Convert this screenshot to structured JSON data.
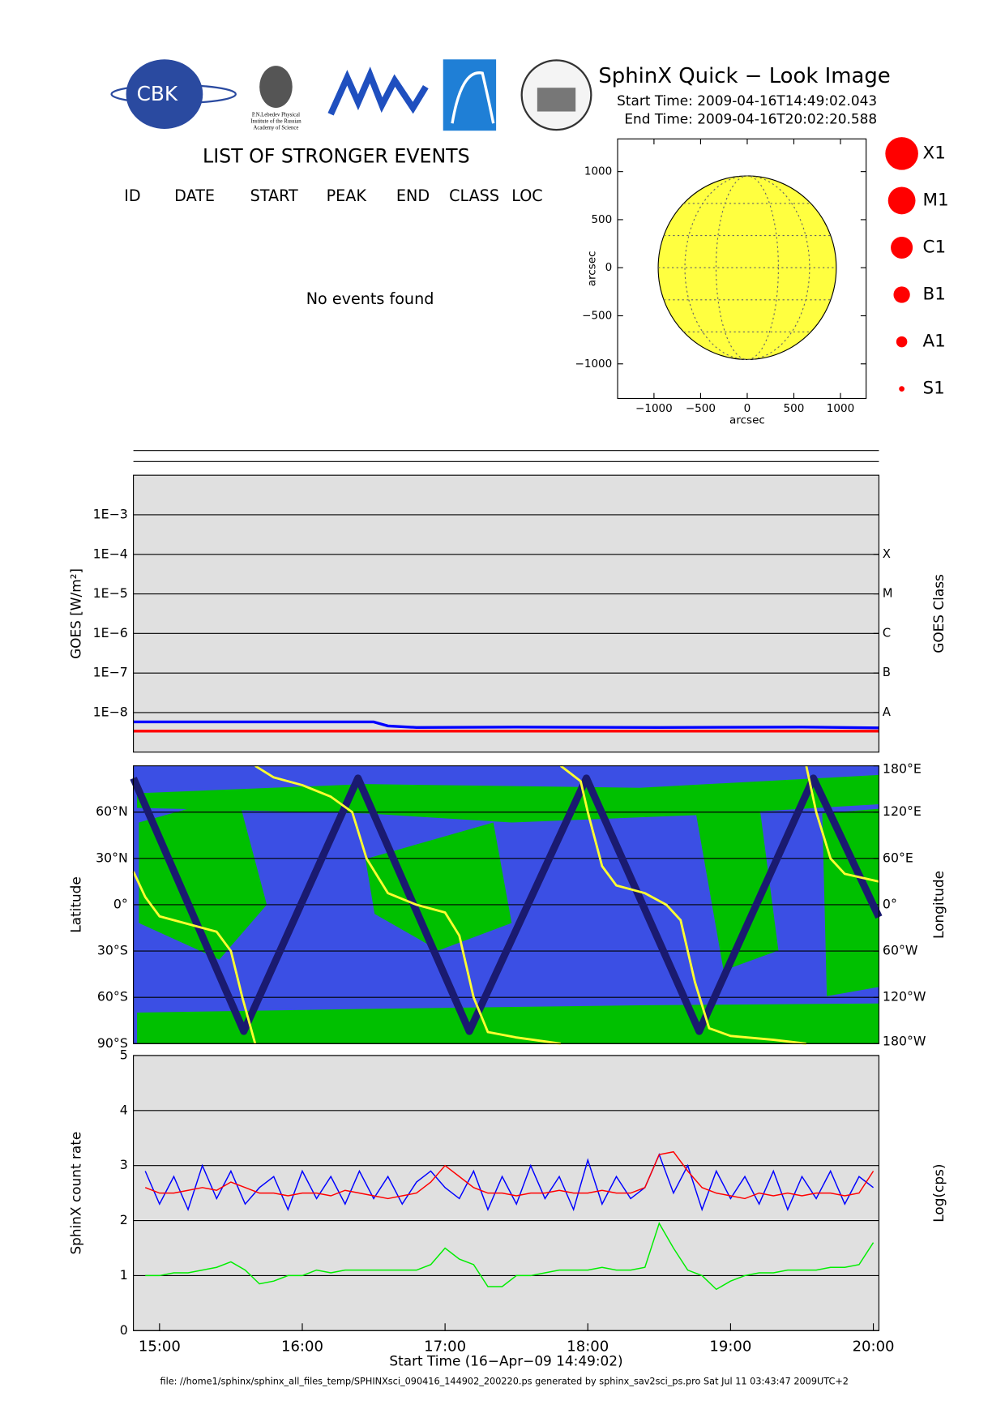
{
  "header": {
    "title": "SphinX Quick − Look Image",
    "start_time": "Start Time: 2009-04-16T14:49:02.043",
    "end_time": "End Time: 2009-04-16T20:02:20.588",
    "logo_cbk": "CBK",
    "logo_lebedev": [
      "P.N.Lebedev Physical",
      "Institute of the Russian",
      "Academy of Science"
    ]
  },
  "events": {
    "title": "LIST OF STRONGER EVENTS",
    "columns": [
      "ID",
      "DATE",
      "START",
      "PEAK",
      "END",
      "CLASS",
      "LOC"
    ],
    "message": "No events found"
  },
  "flare_classes": [
    "X1",
    "M1",
    "C1",
    "B1",
    "A1",
    "S1"
  ],
  "chart_data": [
    {
      "type": "disk",
      "xlabel": "arcsec",
      "ylabel": "arcsec",
      "xlim": [
        -1390,
        1275
      ],
      "ylim": [
        -1360,
        1340
      ],
      "xticks": [
        {
          "value": -1000,
          "label": "−1000"
        },
        {
          "value": -500,
          "label": "−500"
        },
        0,
        500,
        1000
      ],
      "yticks": [
        {
          "value": -1000,
          "label": "−1000"
        },
        {
          "value": -500,
          "label": "−500"
        },
        0,
        500,
        1000
      ],
      "radius": 955,
      "color": "#ffff40"
    },
    {
      "type": "line",
      "ylabel": "GOES [W/m²]",
      "y2label": "GOES Class",
      "log_y": true,
      "grid": true,
      "xlim": [
        14.817,
        20.039
      ],
      "ylim": [
        1e-09,
        0.01
      ],
      "yticks": [
        {
          "value": 0.001,
          "label": "1E−3"
        },
        {
          "value": 0.0001,
          "label": "1E−4"
        },
        {
          "value": 1e-05,
          "label": "1E−5"
        },
        {
          "value": 1e-06,
          "label": "1E−6"
        },
        {
          "value": 1e-07,
          "label": "1E−7"
        },
        {
          "value": 1e-08,
          "label": "1E−8"
        }
      ],
      "y2lim": [
        1e-09,
        0.01
      ],
      "y2ticks": [
        {
          "value": 0.0001,
          "label": "X"
        },
        {
          "value": 1e-05,
          "label": "M"
        },
        {
          "value": 1e-06,
          "label": "C"
        },
        {
          "value": 1e-07,
          "label": "B"
        },
        {
          "value": 1e-08,
          "label": "A"
        }
      ],
      "x": [
        14.817,
        15.5,
        16.5,
        16.6,
        16.8,
        17.5,
        18.5,
        19.5,
        20.039
      ],
      "series": [
        {
          "color": "#ff0000",
          "values": [
            3.4e-09,
            3.4e-09,
            3.4e-09,
            3.4e-09,
            3.4e-09,
            3.4e-09,
            3.4e-09,
            3.4e-09,
            3.4e-09
          ]
        },
        {
          "color": "#0000ff",
          "values": [
            5.8e-09,
            5.8e-09,
            5.8e-09,
            4.6e-09,
            4.2e-09,
            4.3e-09,
            4.2e-09,
            4.3e-09,
            4.1e-09
          ]
        }
      ]
    },
    {
      "type": "track",
      "ylabel": "Latitude",
      "y2label": "Longitude",
      "xlim": [
        14.817,
        20.039
      ],
      "ylim": [
        -90,
        90
      ],
      "yticks": [
        {
          "value": 60,
          "label": "60°N"
        },
        {
          "value": 30,
          "label": "30°N"
        },
        {
          "value": 0,
          "label": "0°"
        },
        {
          "value": -30,
          "label": "30°S"
        },
        {
          "value": -60,
          "label": "60°S"
        },
        {
          "value": -90,
          "label": "90°S"
        }
      ],
      "y2lim": [
        -180,
        180
      ],
      "y2ticks": [
        {
          "value": 180,
          "label": "180°E"
        },
        {
          "value": 120,
          "label": "120°E"
        },
        {
          "value": 60,
          "label": "60°E"
        },
        {
          "value": 0,
          "label": "0°"
        },
        {
          "value": -60,
          "label": "60°W"
        },
        {
          "value": -120,
          "label": "120°W"
        },
        {
          "value": -180,
          "label": "180°W"
        }
      ],
      "series": [
        {
          "color": "#1a1a70",
          "x": [
            14.817,
            15.59,
            16.39,
            17.17,
            17.99,
            18.78,
            19.58,
            20.039
          ],
          "values": [
            82,
            -82,
            82,
            -82,
            82,
            -82,
            82,
            -8
          ]
        },
        {
          "color": "#ffff30",
          "axis": "y2",
          "x": [
            14.817,
            14.9,
            15.0,
            15.2,
            15.4,
            15.5,
            15.58,
            15.67,
            15.67,
            15.67,
            15.8,
            16.0,
            16.2,
            16.35,
            16.45,
            16.6,
            16.8,
            17.0,
            17.1,
            17.2,
            17.3,
            17.5,
            17.81,
            17.81,
            17.81,
            17.95,
            18.0,
            18.1,
            18.2,
            18.4,
            18.55,
            18.65,
            18.75,
            18.85,
            19.0,
            19.3,
            19.53,
            19.53,
            19.53,
            19.6,
            19.7,
            19.8,
            20.039
          ],
          "values": [
            43,
            10,
            -15,
            -25,
            -35,
            -60,
            -120,
            -180,
            null,
            180,
            165,
            155,
            140,
            120,
            60,
            15,
            0,
            -10,
            -40,
            -120,
            -165,
            -172,
            -180,
            null,
            180,
            160,
            120,
            50,
            25,
            15,
            0,
            -20,
            -100,
            -160,
            -170,
            -175,
            -180,
            null,
            180,
            120,
            60,
            40,
            30
          ]
        }
      ]
    },
    {
      "type": "line",
      "ylabel": "SphinX count rate",
      "y2label": "Log(cps)",
      "xlabel": "Start Time (16−Apr−09 14:49:02)",
      "grid": true,
      "xlim": [
        14.817,
        20.039
      ],
      "xticks": [
        {
          "value": 15,
          "label": "15:00"
        },
        {
          "value": 16,
          "label": "16:00"
        },
        {
          "value": 17,
          "label": "17:00"
        },
        {
          "value": 18,
          "label": "18:00"
        },
        {
          "value": 19,
          "label": "19:00"
        },
        {
          "value": 20,
          "label": "20:00"
        }
      ],
      "ylim": [
        0,
        5
      ],
      "yticks": [
        0,
        1,
        2,
        3,
        4,
        5
      ],
      "x": [
        14.9,
        15.0,
        15.1,
        15.2,
        15.3,
        15.4,
        15.5,
        15.6,
        15.7,
        15.8,
        15.9,
        16.0,
        16.1,
        16.2,
        16.3,
        16.4,
        16.5,
        16.6,
        16.7,
        16.8,
        16.9,
        17.0,
        17.1,
        17.2,
        17.3,
        17.4,
        17.5,
        17.6,
        17.7,
        17.8,
        17.9,
        18.0,
        18.1,
        18.2,
        18.3,
        18.4,
        18.5,
        18.6,
        18.7,
        18.8,
        18.9,
        19.0,
        19.1,
        19.2,
        19.3,
        19.4,
        19.5,
        19.6,
        19.7,
        19.8,
        19.9,
        20.0
      ],
      "series": [
        {
          "color": "#0000ff",
          "values": [
            2.9,
            2.3,
            2.8,
            2.2,
            3.0,
            2.4,
            2.9,
            2.3,
            2.6,
            2.8,
            2.2,
            2.9,
            2.4,
            2.8,
            2.3,
            2.9,
            2.4,
            2.8,
            2.3,
            2.7,
            2.9,
            2.6,
            2.4,
            2.9,
            2.2,
            2.8,
            2.3,
            3.0,
            2.4,
            2.8,
            2.2,
            3.1,
            2.3,
            2.8,
            2.4,
            2.6,
            3.2,
            2.5,
            3.0,
            2.2,
            2.9,
            2.4,
            2.8,
            2.3,
            2.9,
            2.2,
            2.8,
            2.4,
            2.9,
            2.3,
            2.8,
            2.6
          ]
        },
        {
          "color": "#ff0000",
          "values": [
            2.6,
            2.5,
            2.5,
            2.55,
            2.6,
            2.55,
            2.7,
            2.6,
            2.5,
            2.5,
            2.45,
            2.5,
            2.5,
            2.45,
            2.55,
            2.5,
            2.45,
            2.4,
            2.45,
            2.5,
            2.7,
            3.0,
            2.8,
            2.6,
            2.5,
            2.5,
            2.45,
            2.5,
            2.5,
            2.55,
            2.5,
            2.5,
            2.55,
            2.5,
            2.5,
            2.6,
            3.2,
            3.25,
            2.9,
            2.6,
            2.5,
            2.45,
            2.4,
            2.5,
            2.45,
            2.5,
            2.45,
            2.5,
            2.5,
            2.45,
            2.5,
            2.9
          ]
        },
        {
          "color": "#00ee00",
          "values": [
            1.0,
            1.0,
            1.05,
            1.05,
            1.1,
            1.15,
            1.25,
            1.1,
            0.85,
            0.9,
            1.0,
            1.0,
            1.1,
            1.05,
            1.1,
            1.1,
            1.1,
            1.1,
            1.1,
            1.1,
            1.2,
            1.5,
            1.3,
            1.2,
            0.8,
            0.8,
            1.0,
            1.0,
            1.05,
            1.1,
            1.1,
            1.1,
            1.15,
            1.1,
            1.1,
            1.15,
            1.95,
            1.5,
            1.1,
            1.0,
            0.75,
            0.9,
            1.0,
            1.05,
            1.05,
            1.1,
            1.1,
            1.1,
            1.15,
            1.15,
            1.2,
            1.6
          ]
        }
      ]
    }
  ],
  "footer": "file: //home1/sphinx/sphinx_all_files_temp/SPHINXsci_090416_144902_200220.ps generated by sphinx_sav2sci_ps.pro Sat Jul 11 03:43:47 2009UTC+2"
}
